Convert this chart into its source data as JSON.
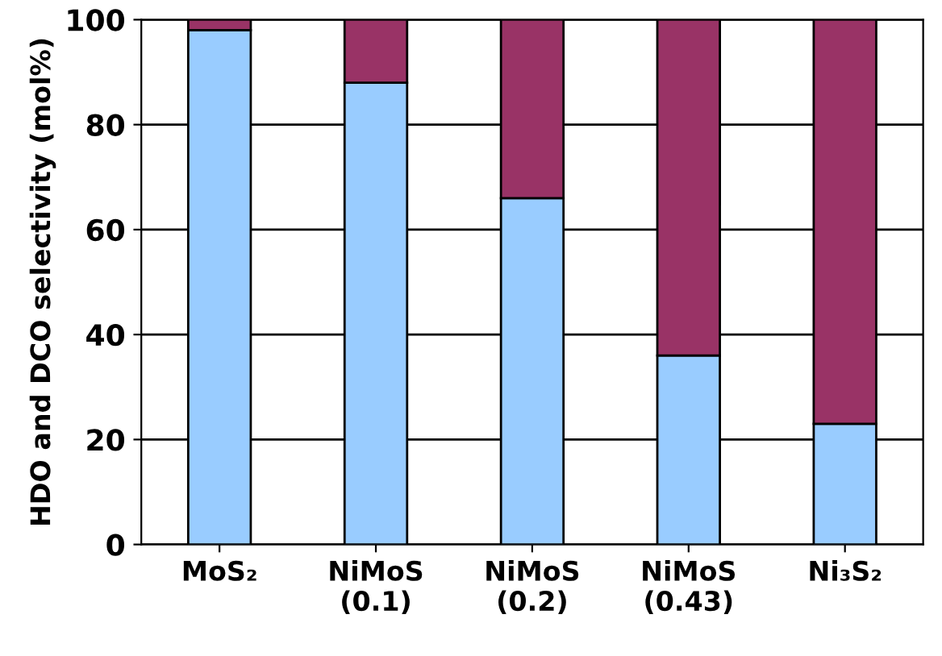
{
  "chart_data": {
    "type": "bar",
    "stacked": true,
    "ylabel": "HDO and DCO selectivity (mol%)",
    "categories": [
      "MoS₂",
      "NiMoS\n(0.1)",
      "NiMoS\n(0.2)",
      "NiMoS\n(0.43)",
      "Ni₃S₂"
    ],
    "series": [
      {
        "color": "#99ccff",
        "values": [
          98,
          88,
          66,
          36,
          23
        ]
      },
      {
        "color": "#993366",
        "values": [
          2,
          12,
          34,
          64,
          77
        ]
      }
    ],
    "ylim": [
      0,
      100
    ],
    "yticks": [
      0,
      20,
      40,
      60,
      80,
      100
    ],
    "grid": "y"
  }
}
